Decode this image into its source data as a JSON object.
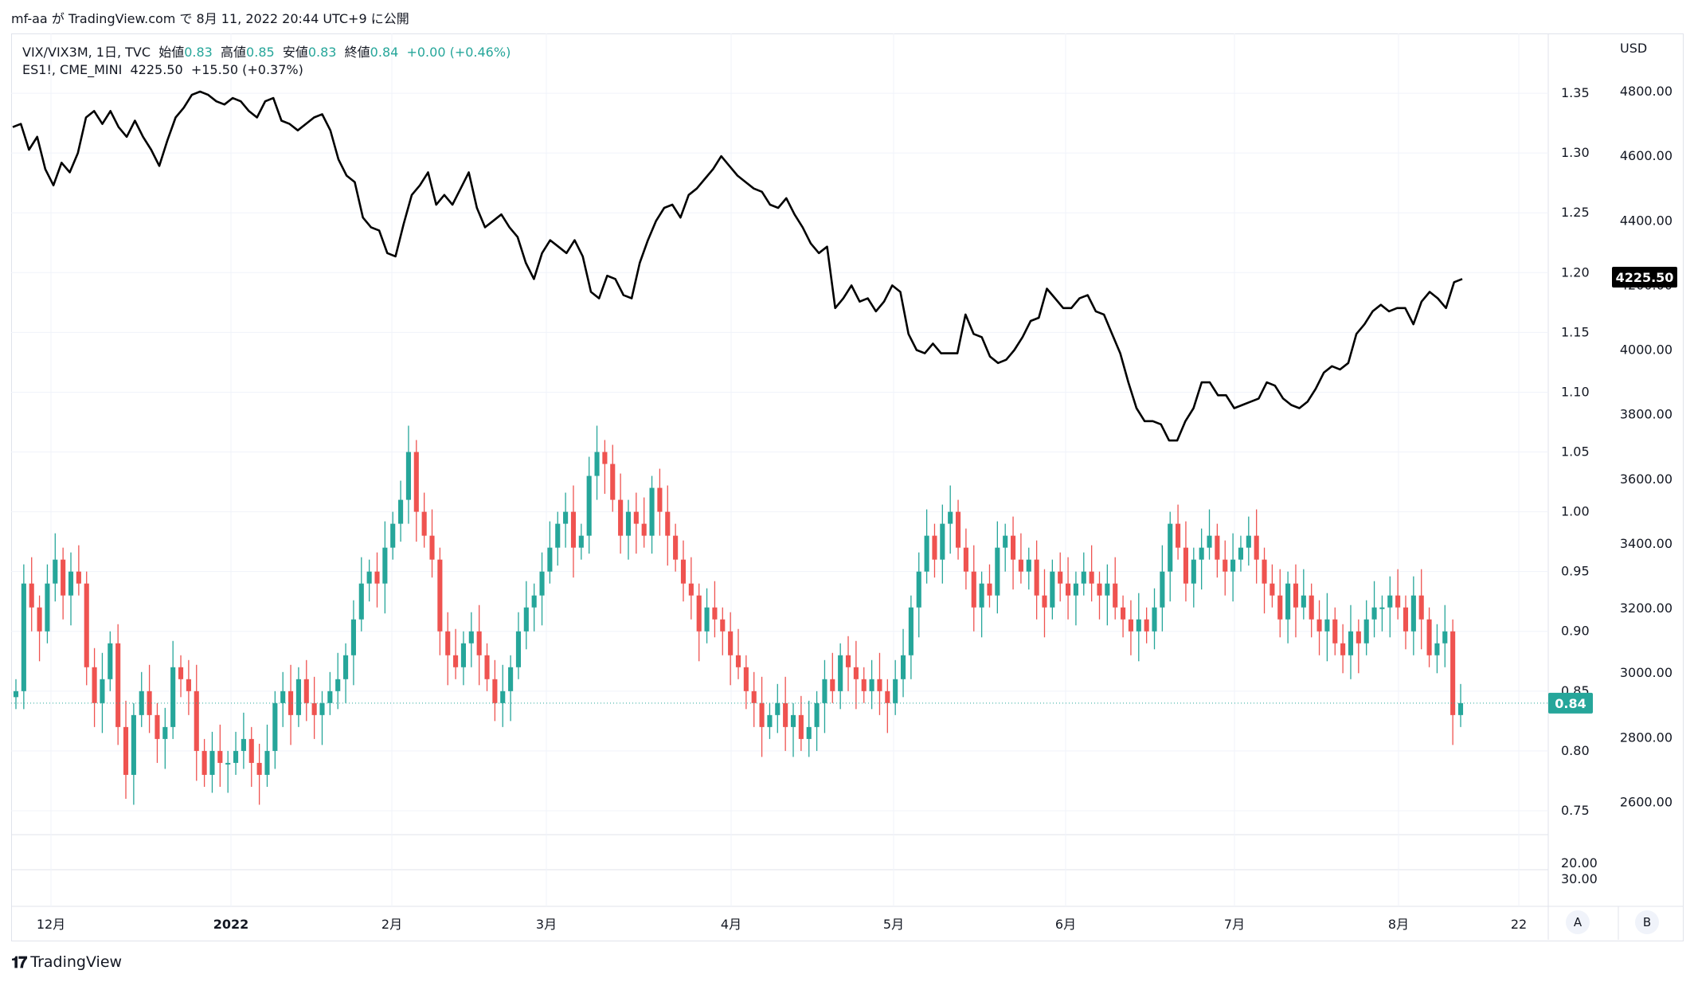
{
  "publish_line": "mf-aa が TradingView.com で 8月 11, 2022 20:44 UTC+9 に公開",
  "legend_main": {
    "symbol": "VIX/VIX3M, 1日, TVC",
    "open_label": "始値",
    "open": "0.83",
    "high_label": "高値",
    "high": "0.85",
    "low_label": "安値",
    "low": "0.83",
    "close_label": "終値",
    "close": "0.84",
    "change": "+0.00 (+0.46%)"
  },
  "legend_es": {
    "symbol": "ES1!, CME_MINI",
    "value": "4225.50",
    "change": "+15.50 (+0.37%)"
  },
  "logo_text": "TradingView",
  "scale_buttons": {
    "a": "A",
    "b": "B"
  },
  "colors": {
    "up": "#26a69a",
    "down": "#ef5350",
    "line": "#000000",
    "grid": "#f0f3fa"
  },
  "chart_data": [
    {
      "type": "candlestick",
      "name": "VIX/VIX3M",
      "x_ticks": [
        "12月",
        "2022",
        "2月",
        "3月",
        "4月",
        "5月",
        "6月",
        "7月",
        "8月",
        "22"
      ],
      "y_ticks": [
        "1.35",
        "1.30",
        "1.25",
        "1.20",
        "1.15",
        "1.10",
        "1.05",
        "1.00",
        "0.95",
        "0.90",
        "0.85",
        "0.80",
        "0.75"
      ],
      "ylim": [
        0.73,
        1.4
      ],
      "last_value_label": "0.84",
      "closes": [
        0.85,
        0.94,
        0.92,
        0.9,
        0.94,
        0.96,
        0.93,
        0.95,
        0.94,
        0.87,
        0.84,
        0.86,
        0.89,
        0.82,
        0.78,
        0.83,
        0.85,
        0.83,
        0.81,
        0.82,
        0.87,
        0.86,
        0.85,
        0.8,
        0.78,
        0.8,
        0.79,
        0.79,
        0.8,
        0.81,
        0.79,
        0.78,
        0.8,
        0.84,
        0.85,
        0.83,
        0.86,
        0.84,
        0.83,
        0.84,
        0.85,
        0.86,
        0.88,
        0.91,
        0.94,
        0.95,
        0.94,
        0.97,
        0.99,
        1.01,
        1.05,
        1.0,
        0.98,
        0.96,
        0.9,
        0.88,
        0.87,
        0.89,
        0.9,
        0.88,
        0.86,
        0.84,
        0.85,
        0.87,
        0.9,
        0.92,
        0.93,
        0.95,
        0.97,
        0.99,
        1.0,
        0.97,
        0.98,
        1.03,
        1.05,
        1.04,
        1.01,
        0.98,
        1.0,
        0.99,
        0.98,
        1.02,
        1.0,
        0.98,
        0.96,
        0.94,
        0.93,
        0.9,
        0.92,
        0.91,
        0.9,
        0.88,
        0.87,
        0.85,
        0.84,
        0.82,
        0.83,
        0.84,
        0.82,
        0.83,
        0.81,
        0.82,
        0.84,
        0.86,
        0.85,
        0.88,
        0.87,
        0.86,
        0.85,
        0.86,
        0.85,
        0.84,
        0.86,
        0.88,
        0.92,
        0.95,
        0.98,
        0.96,
        0.99,
        1.0,
        0.97,
        0.95,
        0.92,
        0.94,
        0.93,
        0.97,
        0.98,
        0.96,
        0.95,
        0.96,
        0.93,
        0.92,
        0.95,
        0.94,
        0.93,
        0.94,
        0.95,
        0.94,
        0.93,
        0.94,
        0.92,
        0.91,
        0.9,
        0.91,
        0.9,
        0.92,
        0.95,
        0.99,
        0.97,
        0.94,
        0.96,
        0.97,
        0.98,
        0.96,
        0.95,
        0.96,
        0.97,
        0.98,
        0.96,
        0.94,
        0.93,
        0.91,
        0.94,
        0.92,
        0.93,
        0.91,
        0.9,
        0.91,
        0.89,
        0.88,
        0.9,
        0.89,
        0.91,
        0.92,
        0.92,
        0.93,
        0.92,
        0.9,
        0.93,
        0.91,
        0.88,
        0.89,
        0.9,
        0.83,
        0.84
      ]
    },
    {
      "type": "line",
      "name": "ES1!",
      "y_ticks": [
        "4800.00",
        "4600.00",
        "4400.00",
        "4200.00",
        "4000.00",
        "3800.00",
        "3600.00",
        "3400.00",
        "3200.00",
        "3000.00",
        "2800.00",
        "2600.00"
      ],
      "ylim": [
        2500,
        4980
      ],
      "unit": "USD",
      "last_value_label": "4225.50",
      "values": [
        4690,
        4700,
        4620,
        4660,
        4560,
        4510,
        4580,
        4550,
        4610,
        4720,
        4740,
        4700,
        4740,
        4690,
        4660,
        4710,
        4660,
        4620,
        4570,
        4650,
        4720,
        4750,
        4790,
        4800,
        4790,
        4770,
        4760,
        4780,
        4770,
        4740,
        4720,
        4770,
        4780,
        4710,
        4700,
        4680,
        4700,
        4720,
        4730,
        4680,
        4590,
        4540,
        4520,
        4410,
        4380,
        4370,
        4300,
        4290,
        4390,
        4480,
        4510,
        4550,
        4450,
        4480,
        4450,
        4500,
        4550,
        4440,
        4380,
        4400,
        4420,
        4380,
        4350,
        4270,
        4220,
        4300,
        4340,
        4320,
        4300,
        4340,
        4290,
        4180,
        4160,
        4230,
        4220,
        4170,
        4160,
        4270,
        4340,
        4400,
        4440,
        4450,
        4410,
        4480,
        4500,
        4530,
        4560,
        4600,
        4570,
        4540,
        4520,
        4500,
        4490,
        4450,
        4440,
        4470,
        4420,
        4380,
        4330,
        4300,
        4320,
        4130,
        4160,
        4200,
        4150,
        4160,
        4120,
        4150,
        4200,
        4180,
        4050,
        4000,
        3990,
        4020,
        3990,
        3990,
        3990,
        4110,
        4050,
        4040,
        3980,
        3960,
        3970,
        4000,
        4040,
        4090,
        4100,
        4190,
        4160,
        4130,
        4130,
        4160,
        4170,
        4120,
        4110,
        4050,
        3990,
        3900,
        3820,
        3780,
        3780,
        3770,
        3720,
        3720,
        3780,
        3820,
        3900,
        3900,
        3860,
        3860,
        3820,
        3830,
        3840,
        3850,
        3900,
        3890,
        3850,
        3830,
        3820,
        3840,
        3880,
        3930,
        3950,
        3940,
        3960,
        4050,
        4080,
        4120,
        4140,
        4120,
        4130,
        4130,
        4080,
        4150,
        4180,
        4160,
        4130,
        4210,
        4220
      ]
    },
    {
      "type": "line",
      "name": "sub-pane",
      "y_ticks": [
        "20.00",
        "30.00"
      ]
    }
  ]
}
